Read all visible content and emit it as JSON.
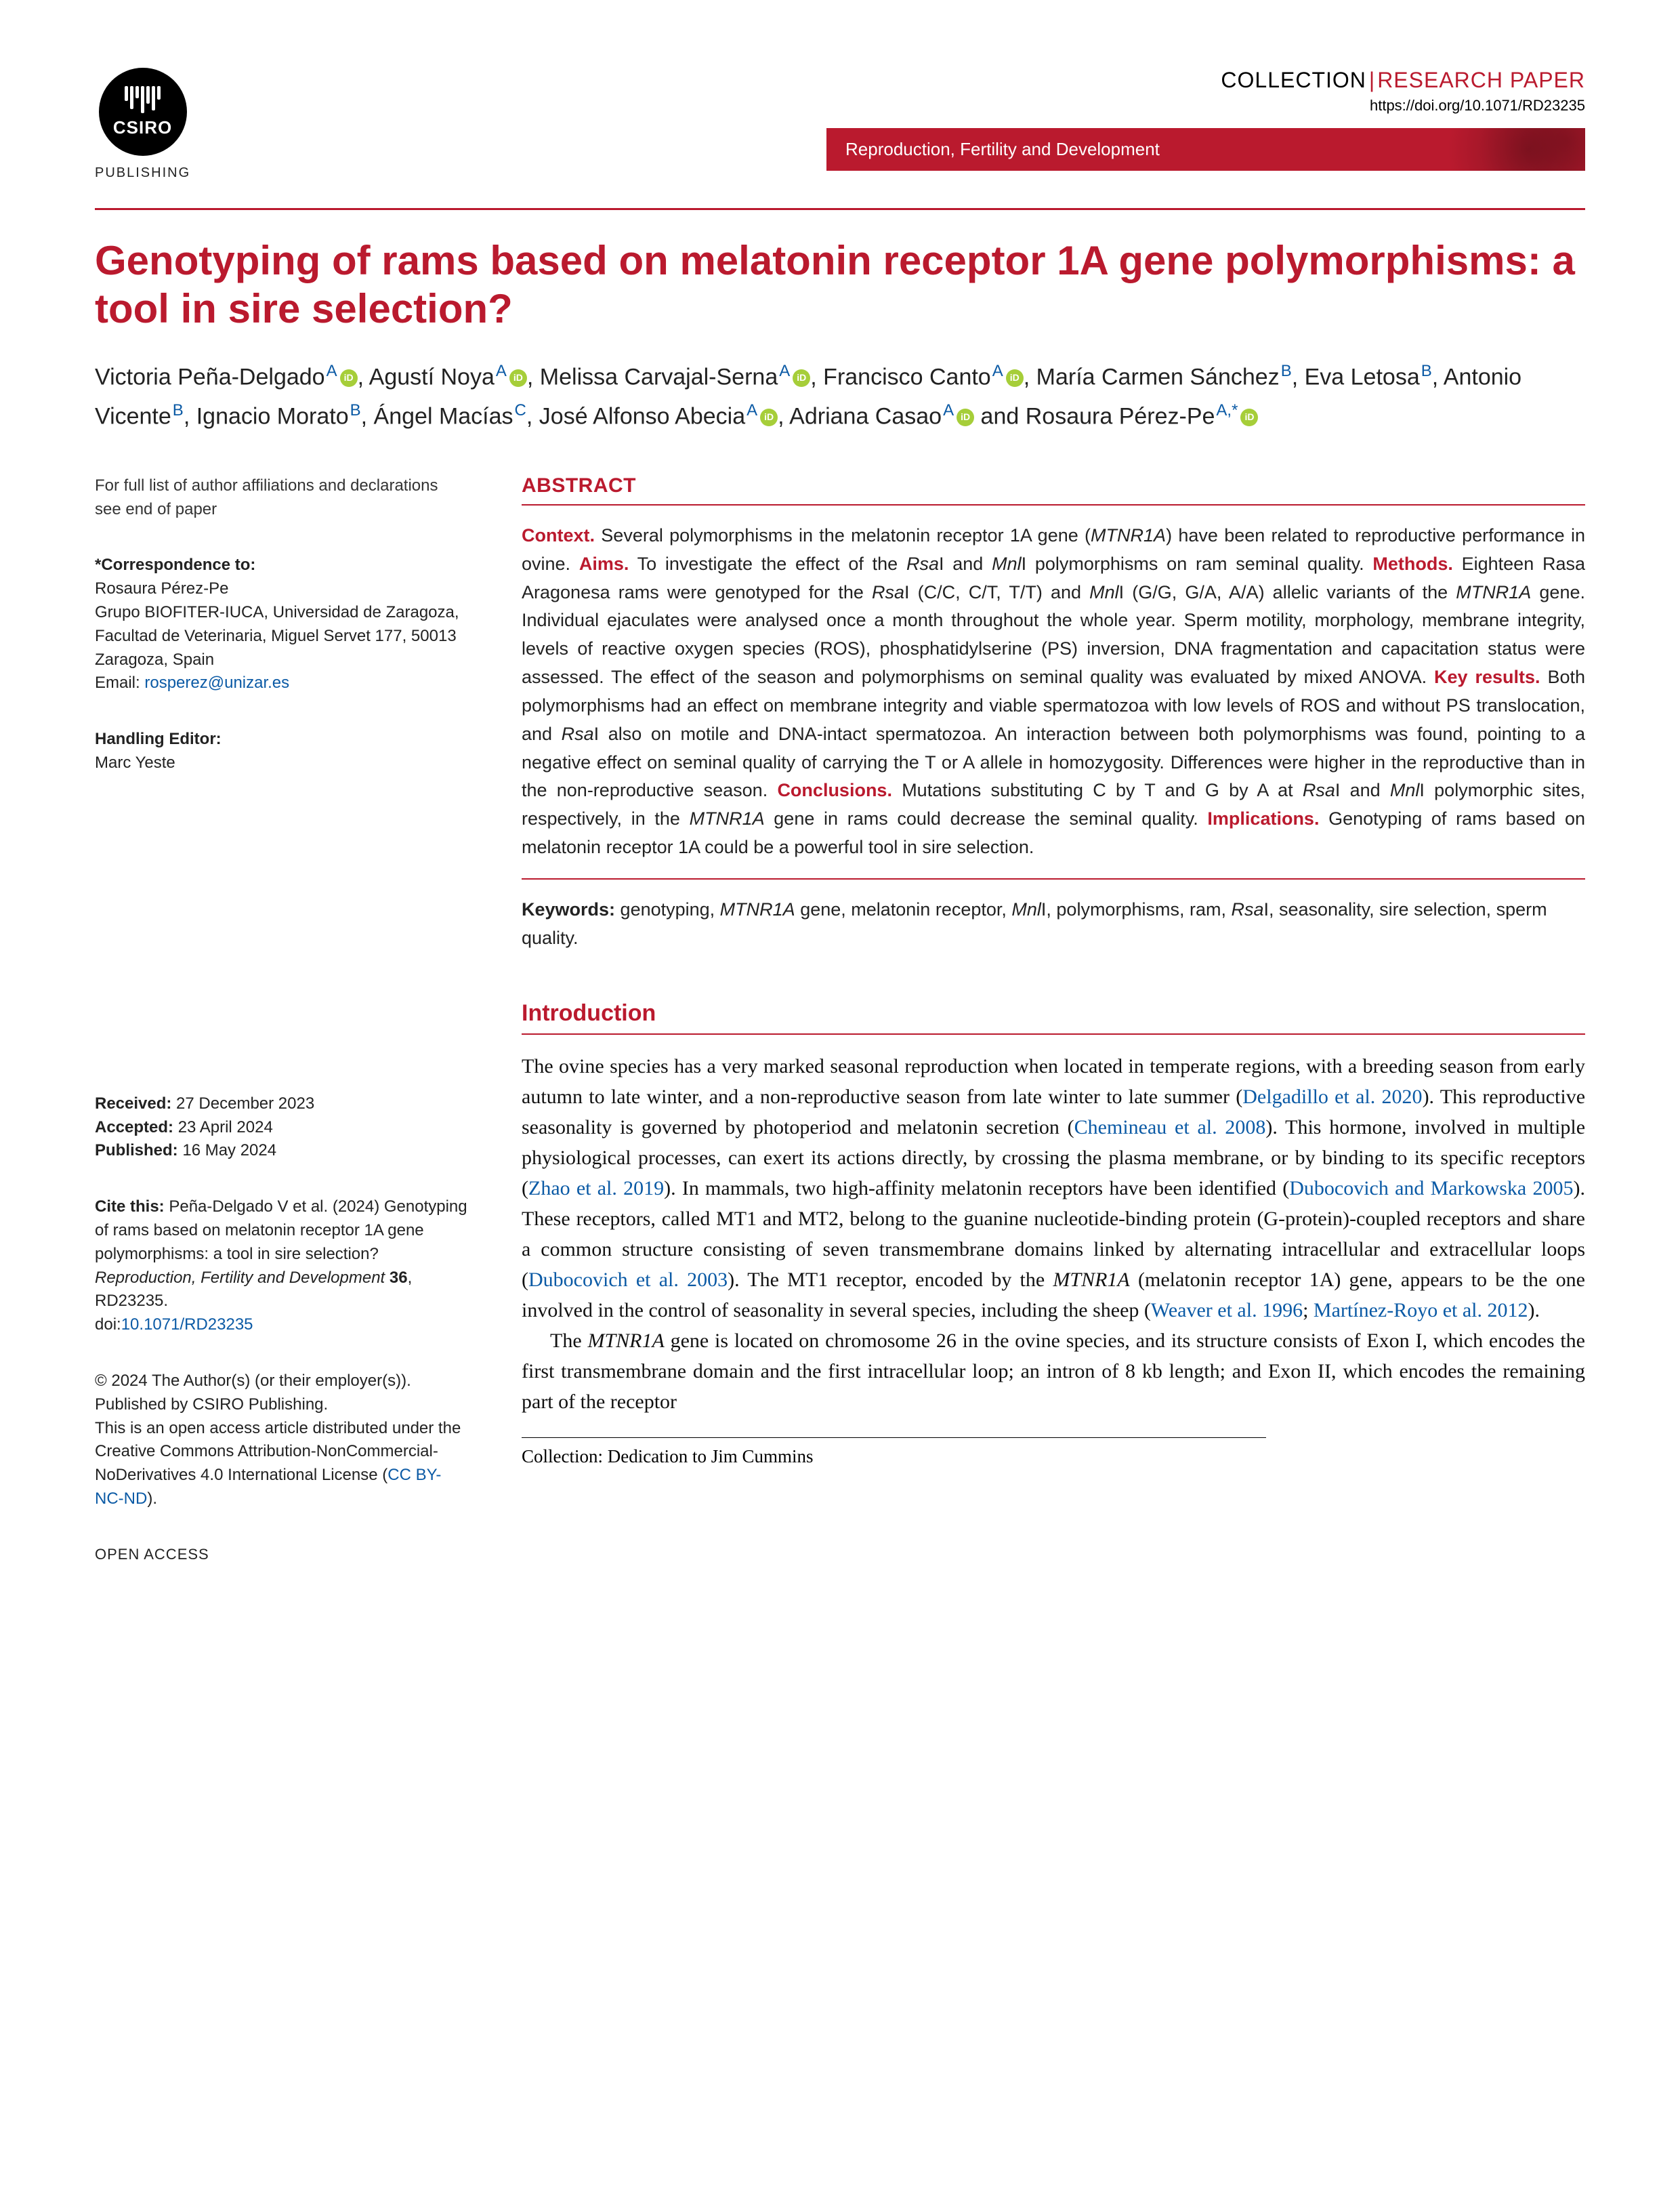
{
  "header": {
    "publisher_label": "PUBLISHING",
    "csiro_word": "CSIRO",
    "collection_word": "COLLECTION",
    "type_word": "RESEARCH PAPER",
    "doi": "https://doi.org/10.1071/RD23235",
    "journal_name": "Reproduction, Fertility and Development",
    "colors": {
      "brand_red": "#BA1A2E",
      "link_blue": "#0b5aa5",
      "orcid_green": "#A6CE39"
    }
  },
  "title": "Genotyping of rams based on melatonin receptor 1A gene polymorphisms: a tool in sire selection?",
  "authors": [
    {
      "name": "Victoria Peña-Delgado",
      "aff": "A",
      "orcid": true,
      "sep": ", "
    },
    {
      "name": "Agustí Noya",
      "aff": "A",
      "orcid": true,
      "sep": ", "
    },
    {
      "name": "Melissa Carvajal-Serna",
      "aff": "A",
      "orcid": true,
      "sep": ", "
    },
    {
      "name": "Francisco Canto",
      "aff": "A",
      "orcid": true,
      "sep": ", "
    },
    {
      "name": "María Carmen Sánchez",
      "aff": "B",
      "orcid": false,
      "sep": ", "
    },
    {
      "name": "Eva Letosa",
      "aff": "B",
      "orcid": false,
      "sep": ", "
    },
    {
      "name": "Antonio Vicente",
      "aff": "B",
      "orcid": false,
      "sep": ", "
    },
    {
      "name": "Ignacio Morato",
      "aff": "B",
      "orcid": false,
      "sep": ", "
    },
    {
      "name": "Ángel Macías",
      "aff": "C",
      "orcid": false,
      "sep": ", "
    },
    {
      "name": "José Alfonso Abecia",
      "aff": "A",
      "orcid": true,
      "sep": ", "
    },
    {
      "name": "Adriana Casao",
      "aff": "A",
      "orcid": true,
      "sep": " and "
    },
    {
      "name": "Rosaura Pérez-Pe",
      "aff": "A,*",
      "orcid": true,
      "sep": ""
    }
  ],
  "sidebar": {
    "affil_note": "For full list of author affiliations and declarations see end of paper",
    "correspondence": {
      "label": "*Correspondence to:",
      "name": "Rosaura Pérez-Pe",
      "address": "Grupo BIOFITER-IUCA, Universidad de Zaragoza, Facultad de Veterinaria, Miguel Servet 177, 50013 Zaragoza, Spain",
      "email_prefix": "Email: ",
      "email": "rosperez@unizar.es"
    },
    "handling_editor_label": "Handling Editor:",
    "handling_editor_name": "Marc Yeste",
    "dates": {
      "received_label": "Received:",
      "received": " 27 December 2023",
      "accepted_label": "Accepted:",
      "accepted": " 23 April 2024",
      "published_label": "Published:",
      "published": " 16 May 2024"
    },
    "cite_label": "Cite this: ",
    "cite_text": "Peña-Delgado V et al. (2024) Genotyping of rams based on melatonin receptor 1A gene polymorphisms: a tool in sire selection? Reproduction, Fertility and Development 36, RD23235.",
    "cite_doi_prefix": "doi:",
    "cite_doi": "10.1071/RD23235",
    "copyright": "© 2024 The Author(s) (or their employer(s)). Published by CSIRO Publishing.",
    "license_text": "This is an open access article distributed under the Creative Commons Attribution-NonCommercial-NoDerivatives 4.0 International License (",
    "license_link": "CC BY-NC-ND",
    "license_close": ").",
    "open_access": "OPEN ACCESS"
  },
  "abstract": {
    "heading": "ABSTRACT",
    "sections": {
      "context_label": "Context.",
      "context": " Several polymorphisms in the melatonin receptor 1A gene (",
      "context_gene": "MTNR1A",
      "context2": ") have been related to reproductive performance in ovine. ",
      "aims_label": "Aims.",
      "aims": " To investigate the effect of the ",
      "aims_i1": "Rsa",
      "aims_mid": "I and ",
      "aims_i2": "Mnl",
      "aims2": "I polymorphisms on ram seminal quality. ",
      "methods_label": "Methods.",
      "methods": " Eighteen Rasa Aragonesa rams were genotyped for the ",
      "methods_i1": "Rsa",
      "methods_mid1": "I (C/C, C/T, T/T) and ",
      "methods_i2": "Mnl",
      "methods_mid2": "I (G/G, G/A, A/A) allelic variants of the ",
      "methods_gene": "MTNR1A",
      "methods2": " gene. Individual ejaculates were analysed once a month throughout the whole year. Sperm motility, morphology, membrane integrity, levels of reactive oxygen species (ROS), phosphatidylserine (PS) inversion, DNA fragmentation and capacitation status were assessed. The effect of the season and polymorphisms on seminal quality was evaluated by mixed ANOVA. ",
      "results_label": "Key results.",
      "results": " Both polymorphisms had an effect on membrane integrity and viable spermatozoa with low levels of ROS and without PS translocation, and ",
      "results_i1": "Rsa",
      "results2": "I also on motile and DNA-intact spermatozoa. An interaction between both polymorphisms was found, pointing to a negative effect on seminal quality of carrying the T or A allele in homozygosity. Differences were higher in the reproductive than in the non-reproductive season. ",
      "conclusions_label": "Conclusions.",
      "conclusions": " Mutations substituting C by T and G by A at ",
      "conc_i1": "Rsa",
      "conc_mid": "I and ",
      "conc_i2": "Mnl",
      "conc2": "I polymorphic sites, respectively, in the ",
      "conc_gene": "MTNR1A",
      "conc3": " gene in rams could decrease the seminal quality. ",
      "implications_label": "Implications.",
      "implications": " Genotyping of rams based on melatonin receptor 1A could be a powerful tool in sire selection."
    },
    "keywords_label": "Keywords:",
    "keywords_text": " genotyping, MTNR1A gene, melatonin receptor, MnlI, polymorphisms, ram, RsaI, seasonality, sire selection, sperm quality."
  },
  "intro": {
    "heading": "Introduction",
    "p1a": "The ovine species has a very marked seasonal reproduction when located in temperate regions, with a breeding season from early autumn to late winter, and a non-reproductive season from late winter to late summer (",
    "c1": "Delgadillo et al. 2020",
    "p1b": "). This reproductive seasonality is governed by photoperiod and melatonin secretion (",
    "c2": "Chemineau et al. 2008",
    "p1c": "). This hormone, involved in multiple physiological processes, can exert its actions directly, by crossing the plasma membrane, or by binding to its specific receptors (",
    "c3": "Zhao et al. 2019",
    "p1d": "). In mammals, two high-affinity melatonin receptors have been identified (",
    "c4": "Dubocovich and Markowska 2005",
    "p1e": "). These receptors, called MT1 and MT2, belong to the guanine nucleotide-binding protein (G-protein)-coupled receptors and share a common structure consisting of seven transmembrane domains linked by alternating intracellular and extracellular loops (",
    "c5": "Dubocovich et al. 2003",
    "p1f": "). The MT1 receptor, encoded by the ",
    "gene1": "MTNR1A",
    "p1g": " (melatonin receptor 1A) gene, appears to be the one involved in the control of seasonality in several species, including the sheep (",
    "c6": "Weaver et al. 1996",
    "p1h": "; ",
    "c7": "Martínez-Royo et al. 2012",
    "p1i": ").",
    "p2a": "The ",
    "gene2": "MTNR1A",
    "p2b": " gene is located on chromosome 26 in the ovine species, and its structure consists of Exon I, which encodes the first transmembrane domain and the first intracellular loop; an intron of 8 kb length; and Exon II, which encodes the remaining part of the receptor"
  },
  "footnote": "Collection: Dedication to Jim Cummins"
}
